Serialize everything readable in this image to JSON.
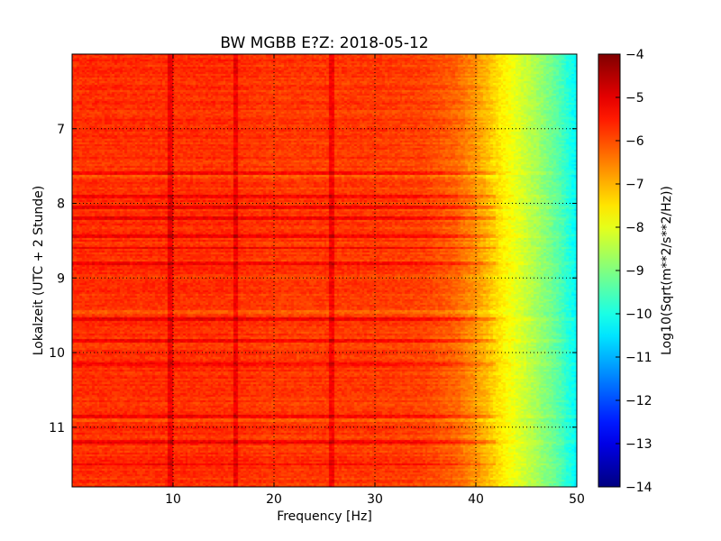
{
  "chart_data": {
    "type": "heatmap",
    "title": "BW MGBB E?Z: 2018-05-12",
    "xlabel": "Frequency [Hz]",
    "ylabel": "Lokalzeit (UTC + 2 Stunde)",
    "colorbar_label": "Log10(Sqrt(m**2/s**2/Hz))",
    "xlim": [
      0,
      50
    ],
    "ylim": [
      6.0,
      11.8
    ],
    "y_inverted": true,
    "x_ticks": [
      10,
      20,
      30,
      40,
      50
    ],
    "y_ticks": [
      7,
      8,
      9,
      10,
      11
    ],
    "color_ticks": [
      -4,
      -5,
      -6,
      -7,
      -8,
      -9,
      -10,
      -11,
      -12,
      -13,
      -14
    ],
    "color_range": [
      -14,
      -4
    ],
    "colormap": "jet",
    "grid": true,
    "baseline": {
      "frequency_hz": [
        0,
        5,
        10,
        15,
        20,
        25,
        30,
        35,
        38,
        40,
        42,
        44,
        46,
        48,
        49,
        50
      ],
      "log10_psd": [
        -5.7,
        -5.7,
        -5.7,
        -5.7,
        -5.8,
        -5.8,
        -5.8,
        -5.9,
        -6.2,
        -6.7,
        -7.4,
        -8.0,
        -8.6,
        -9.3,
        -9.8,
        -10.3
      ]
    },
    "spectral_lines_hz": [
      9.8,
      16.2,
      25.8
    ],
    "dark_time_bands": [
      7.6,
      7.9,
      8.05,
      8.2,
      8.45,
      8.6,
      8.8,
      9.55,
      9.85,
      10.15,
      10.85,
      11.2,
      11.5
    ],
    "light_time_bands": [
      7.65,
      9.45,
      10.9
    ]
  }
}
